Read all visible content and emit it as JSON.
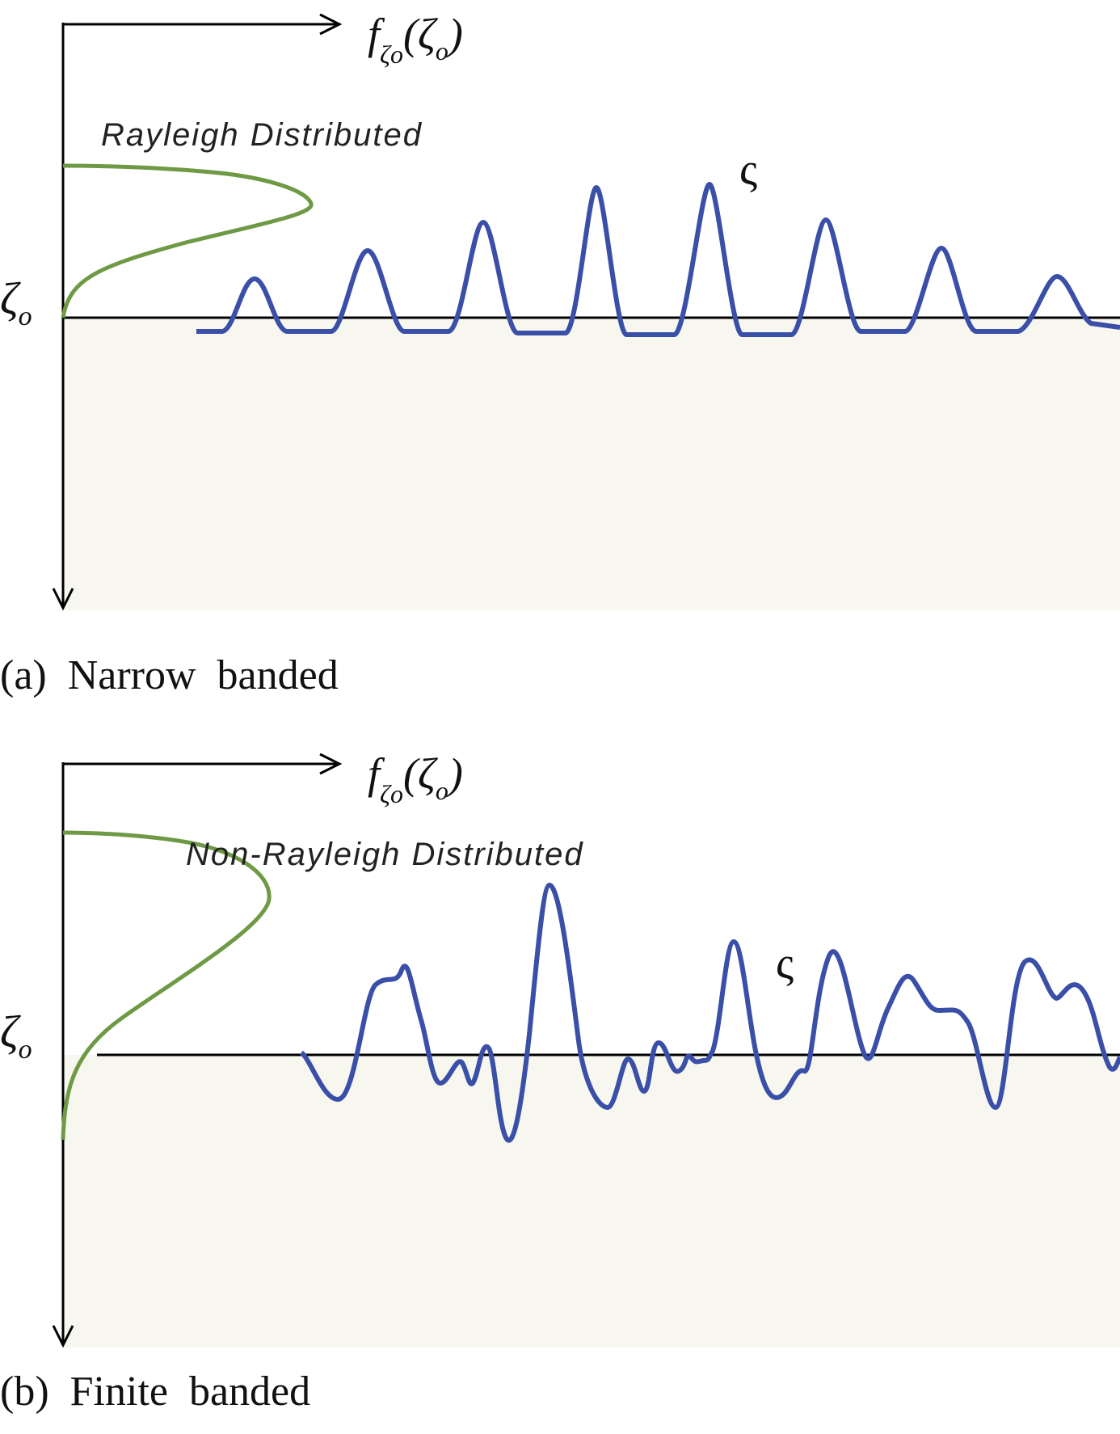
{
  "panel_a": {
    "axis_label_prefix": "f",
    "axis_label_sub": "ζo",
    "axis_label_arg": "(ζ",
    "axis_label_arg_sub": "o",
    "axis_label_close": ")",
    "zeta_o": "ζ",
    "zeta_o_sub": "o",
    "distribution_label": "Rayleigh Distributed",
    "wave_label": "ς",
    "caption": "(a)  Narrow  banded"
  },
  "panel_b": {
    "axis_label_prefix": "f",
    "axis_label_sub": "ζo",
    "axis_label_arg": "(ζ",
    "axis_label_arg_sub": "o",
    "axis_label_close": ")",
    "zeta_o": "ζ",
    "zeta_o_sub": "o",
    "distribution_label": "Non-Rayleigh Distributed",
    "wave_label": "ς",
    "caption": "(b)  Finite  banded"
  },
  "colors": {
    "wave": "#3a4fa8",
    "distribution": "#6e9a45",
    "shading": "#f7f7f0",
    "axis": "#000000"
  }
}
